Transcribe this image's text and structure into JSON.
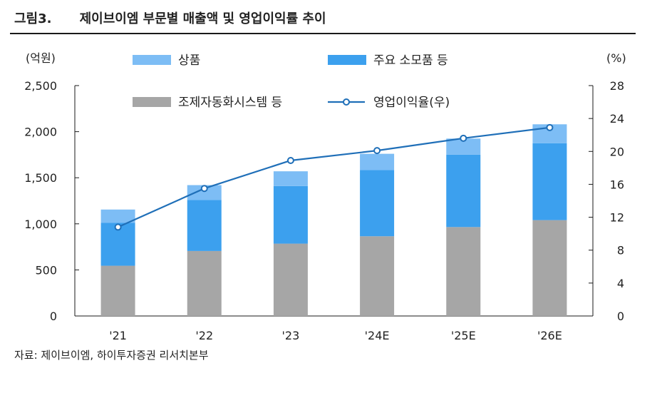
{
  "header": {
    "label": "그림3.",
    "title": "제이브이엠 부문별 매출액 및 영업이익률 추이"
  },
  "source": "자료: 제이브이엠, 하이투자증권 리서치본부",
  "colors": {
    "goods": "#7dbdf5",
    "consumables": "#3ca0ee",
    "manufacturing": "#a6a6a6",
    "margin": "#1f6fb8"
  },
  "chart_data": {
    "type": "bar",
    "stacked": true,
    "categories": [
      "'21",
      "'22",
      "'23",
      "'24E",
      "'25E",
      "'26E"
    ],
    "series": [
      {
        "name": "조제자동화시스템 등",
        "axis": "left",
        "values": [
          545,
          705,
          785,
          865,
          965,
          1040
        ]
      },
      {
        "name": "주요 소모품 등",
        "axis": "left",
        "values": [
          465,
          555,
          625,
          720,
          785,
          835
        ]
      },
      {
        "name": "상품",
        "axis": "left",
        "values": [
          145,
          160,
          160,
          175,
          175,
          205
        ]
      }
    ],
    "line_series": {
      "name": "영업이익율(우)",
      "axis": "right",
      "values": [
        10.8,
        15.5,
        18.9,
        20.1,
        21.6,
        22.9
      ]
    },
    "left_axis": {
      "unit": "(억원)",
      "ylim": [
        0,
        2500
      ],
      "ticks": [
        0,
        500,
        1000,
        1500,
        2000,
        2500
      ],
      "tick_labels": [
        "0",
        "500",
        "1,000",
        "1,500",
        "2,000",
        "2,500"
      ]
    },
    "right_axis": {
      "unit": "(%)",
      "ylim": [
        0,
        28
      ],
      "ticks": [
        0,
        4,
        8,
        12,
        16,
        20,
        24,
        28
      ],
      "tick_labels": [
        "0",
        "4",
        "8",
        "12",
        "16",
        "20",
        "24",
        "28"
      ]
    },
    "legend": [
      {
        "label": "상품",
        "type": "bar",
        "series": "goods"
      },
      {
        "label": "주요 소모품 등",
        "type": "bar",
        "series": "consumables"
      },
      {
        "label": "조제자동화시스템 등",
        "type": "bar",
        "series": "manufacturing"
      },
      {
        "label": "영업이익율(우)",
        "type": "line",
        "series": "margin"
      }
    ],
    "grid": false,
    "legend_position": "top"
  }
}
